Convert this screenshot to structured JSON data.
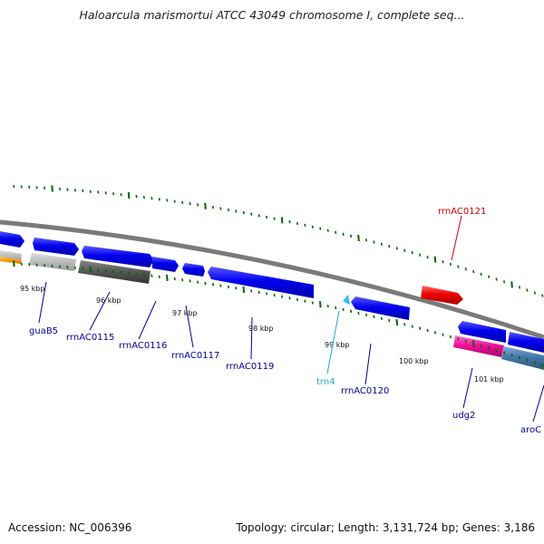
{
  "title": "Haloarcula marismortui ATCC 43049 chromosome I, complete seq...",
  "footer": {
    "accession": "Accession: NC_006396",
    "summary": "Topology: circular; Length: 3,131,724 bp; Genes: 3,186"
  },
  "colors": {
    "cds": "#0000ee",
    "rrna": "#ee0000",
    "trna": "#33bbee",
    "backbone": "#888888",
    "ticks": "#006600",
    "label_default": "#000099",
    "label_rrna": "#cc0000",
    "label_trna": "#22aacc"
  },
  "scale": {
    "ticks_kbp": [
      "95 kbp",
      "96 kbp",
      "97 kbp",
      "98 kbp",
      "99 kbp",
      "100 kbp",
      "101 kbp"
    ]
  },
  "gene_labels": [
    {
      "name": "guaB5",
      "type": "cds"
    },
    {
      "name": "rrnAC0115",
      "type": "cds"
    },
    {
      "name": "rrnAC0116",
      "type": "cds"
    },
    {
      "name": "rrnAC0117",
      "type": "cds"
    },
    {
      "name": "rrnAC0119",
      "type": "cds"
    },
    {
      "name": "trn4",
      "type": "trna"
    },
    {
      "name": "rrnAC0120",
      "type": "cds"
    },
    {
      "name": "rrnAC0121",
      "type": "rrna"
    },
    {
      "name": "udg2",
      "type": "cds"
    },
    {
      "name": "aroC",
      "type": "cds"
    }
  ]
}
